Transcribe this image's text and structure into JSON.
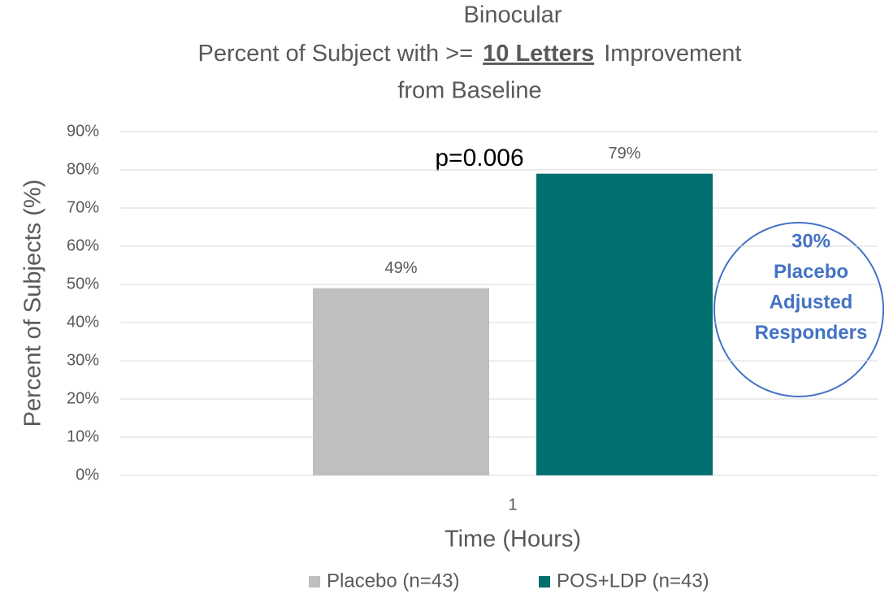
{
  "chart_data": {
    "type": "bar",
    "title": {
      "line1": "Binocular",
      "line2_start": "Percent of Subject with >=",
      "line2_bold": "10 Letters",
      "line2_end": "Improvement",
      "line3": "from Baseline"
    },
    "x_label": "Time (Hours)",
    "y_label": "Percent of Subjects (%)",
    "categories": [
      "1"
    ],
    "series": [
      {
        "name": "Placebo (n=43)",
        "color": "#bfbfbf",
        "values": [
          49
        ],
        "value_labels": [
          "49%"
        ]
      },
      {
        "name": "POS+LDP (n=43)",
        "color": "#006f6f",
        "values": [
          79
        ],
        "value_labels": [
          "79%"
        ]
      }
    ],
    "ylim": [
      0,
      90
    ],
    "yticks": [
      {
        "value": 0,
        "label": "0%"
      },
      {
        "value": 10,
        "label": "10%"
      },
      {
        "value": 20,
        "label": "20%"
      },
      {
        "value": 30,
        "label": "30%"
      },
      {
        "value": 40,
        "label": "40%"
      },
      {
        "value": 50,
        "label": "50%"
      },
      {
        "value": 60,
        "label": "60%"
      },
      {
        "value": 70,
        "label": "70%"
      },
      {
        "value": 80,
        "label": "80%"
      },
      {
        "value": 90,
        "label": "90%"
      }
    ],
    "grid": true,
    "legend": "bottom",
    "annotations": {
      "p_value": "p=0.006",
      "callout": [
        "30%",
        "Placebo",
        "Adjusted",
        "Responders"
      ]
    }
  }
}
